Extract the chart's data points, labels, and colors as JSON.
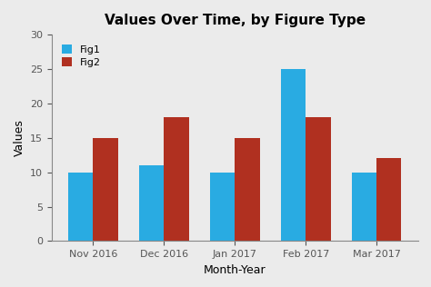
{
  "title": "Values Over Time, by Figure Type",
  "xlabel": "Month-Year",
  "ylabel": "Values",
  "categories": [
    "Nov 2016",
    "Dec 2016",
    "Jan 2017",
    "Feb 2017",
    "Mar 2017"
  ],
  "fig1_values": [
    10,
    11,
    10,
    25,
    10
  ],
  "fig2_values": [
    15,
    18,
    15,
    18,
    12
  ],
  "fig1_color": "#29ABE2",
  "fig2_color": "#B03020",
  "ylim": [
    0,
    30
  ],
  "yticks": [
    0,
    5,
    10,
    15,
    20,
    25,
    30
  ],
  "legend_labels": [
    "Fig1",
    "Fig2"
  ],
  "bar_width": 0.35,
  "background_color": "#EBEBEB",
  "title_fontsize": 11,
  "axis_label_fontsize": 9,
  "tick_fontsize": 8,
  "legend_fontsize": 8
}
